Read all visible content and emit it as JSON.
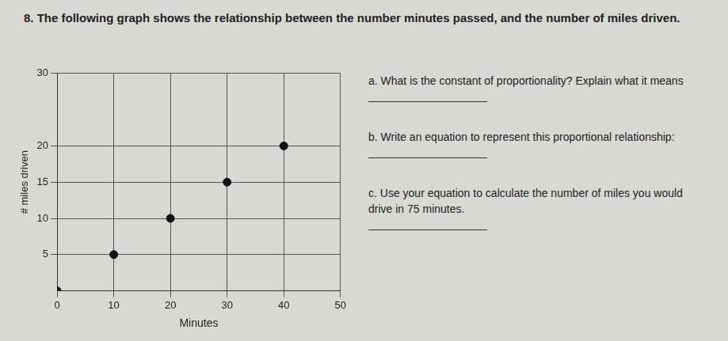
{
  "chart_data": {
    "type": "scatter",
    "title": "8. The following graph shows the relationship between the number minutes passed, and the number of miles driven.",
    "x_label": "Minutes",
    "y_label": "# miles driven",
    "x": [
      0,
      10,
      20,
      30,
      40
    ],
    "values": [
      0,
      5,
      10,
      15,
      20
    ],
    "color": "#111111",
    "marker": "circle",
    "xlim": [
      0,
      50
    ],
    "xticks": [
      0,
      10,
      20,
      30,
      40,
      50
    ],
    "ylim": [
      0,
      30
    ],
    "yticks": [
      5,
      10,
      15,
      20,
      30
    ],
    "grid": true,
    "annotations": [
      "a. What is the constant of proportionality? Explain what it means",
      "b. Write an equation to represent this proportional relationship:",
      "c. Use your equation to calculate the number of miles you would drive in 75 minutes."
    ]
  }
}
